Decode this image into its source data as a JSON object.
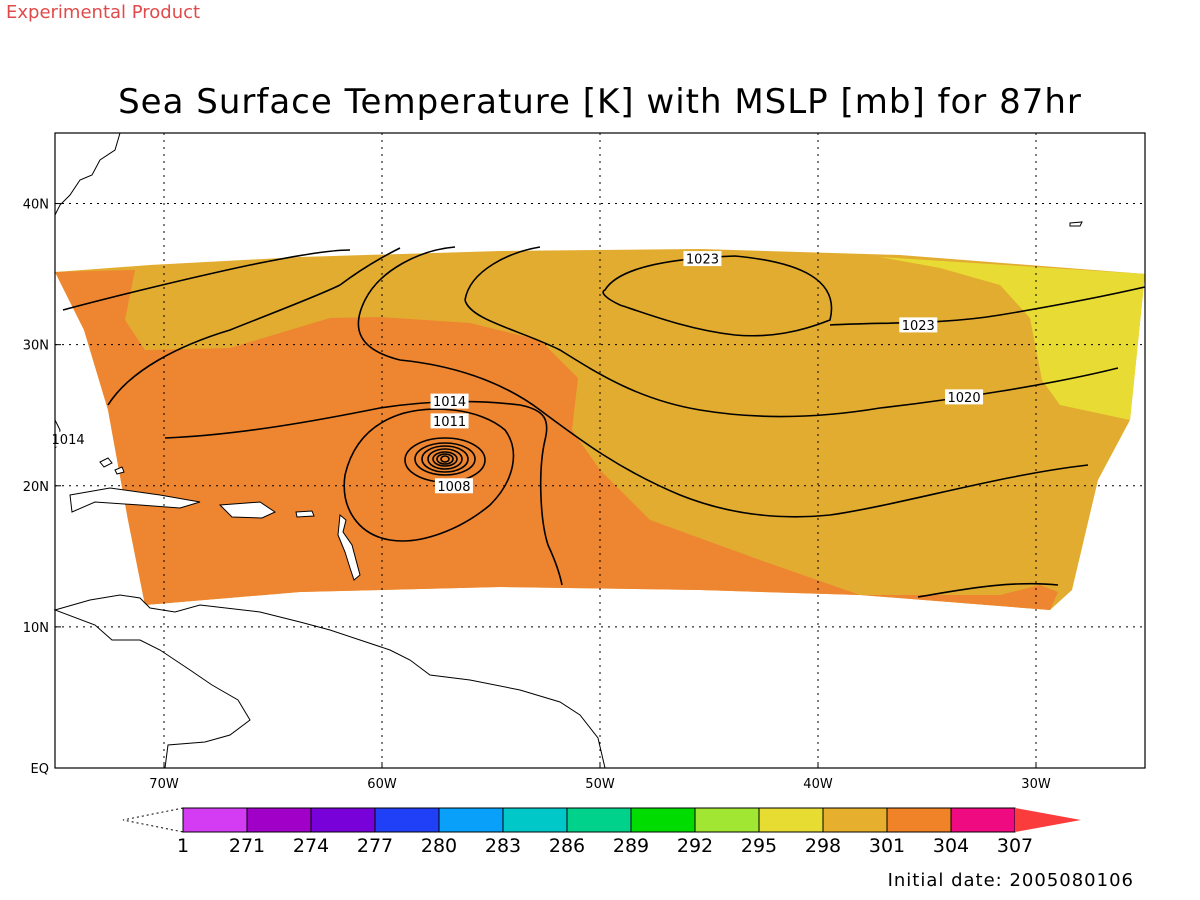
{
  "header": {
    "experimental": "Experimental Product",
    "title": "Sea Surface Temperature [K] with MSLP [mb] for 87hr"
  },
  "footer": {
    "initial_date": "Initial date: 2005080106"
  },
  "map": {
    "lon_range": [
      -75,
      -25
    ],
    "lat_range": [
      0,
      45
    ],
    "lon_ticks": [
      {
        "value": -70,
        "label": "70W"
      },
      {
        "value": -60,
        "label": "60W"
      },
      {
        "value": -50,
        "label": "50W"
      },
      {
        "value": -40,
        "label": "40W"
      },
      {
        "value": -30,
        "label": "30W"
      }
    ],
    "lat_ticks": [
      {
        "value": 0,
        "label": "EQ"
      },
      {
        "value": 10,
        "label": "10N"
      },
      {
        "value": 20,
        "label": "20N"
      },
      {
        "value": 30,
        "label": "30N"
      },
      {
        "value": 40,
        "label": "40N"
      }
    ],
    "grid": true,
    "sst_colors": {
      "below_298": "#e8dc34",
      "298_301": "#e2ac30",
      "301_304": "#ee8530"
    },
    "isobar_labels": [
      {
        "text": "1023",
        "lon": -45.3,
        "lat": 36.1
      },
      {
        "text": "1023",
        "lon": -35.4,
        "lat": 31.4
      },
      {
        "text": "1020",
        "lon": -33.3,
        "lat": 26.3
      },
      {
        "text": "1014",
        "lon": -56.9,
        "lat": 26.0
      },
      {
        "text": "1011",
        "lon": -56.9,
        "lat": 24.6
      },
      {
        "text": "1014",
        "lon": -74.4,
        "lat": 23.3
      },
      {
        "text": "1008",
        "lon": -56.7,
        "lat": 20.0
      }
    ],
    "storm_center": {
      "lon": -57.2,
      "lat": 21.9
    }
  },
  "colorbar": {
    "labels": [
      "1",
      "271",
      "274",
      "277",
      "280",
      "283",
      "286",
      "289",
      "292",
      "295",
      "298",
      "301",
      "304",
      "307"
    ],
    "colors": [
      "#d43cf4",
      "#a000c8",
      "#7800d8",
      "#2040f8",
      "#08a0f8",
      "#00c8c8",
      "#00d28c",
      "#00dc00",
      "#a0e632",
      "#e6dc32",
      "#e6af2d",
      "#f08228",
      "#f00a82"
    ],
    "max_color": "#fa3c3c"
  }
}
